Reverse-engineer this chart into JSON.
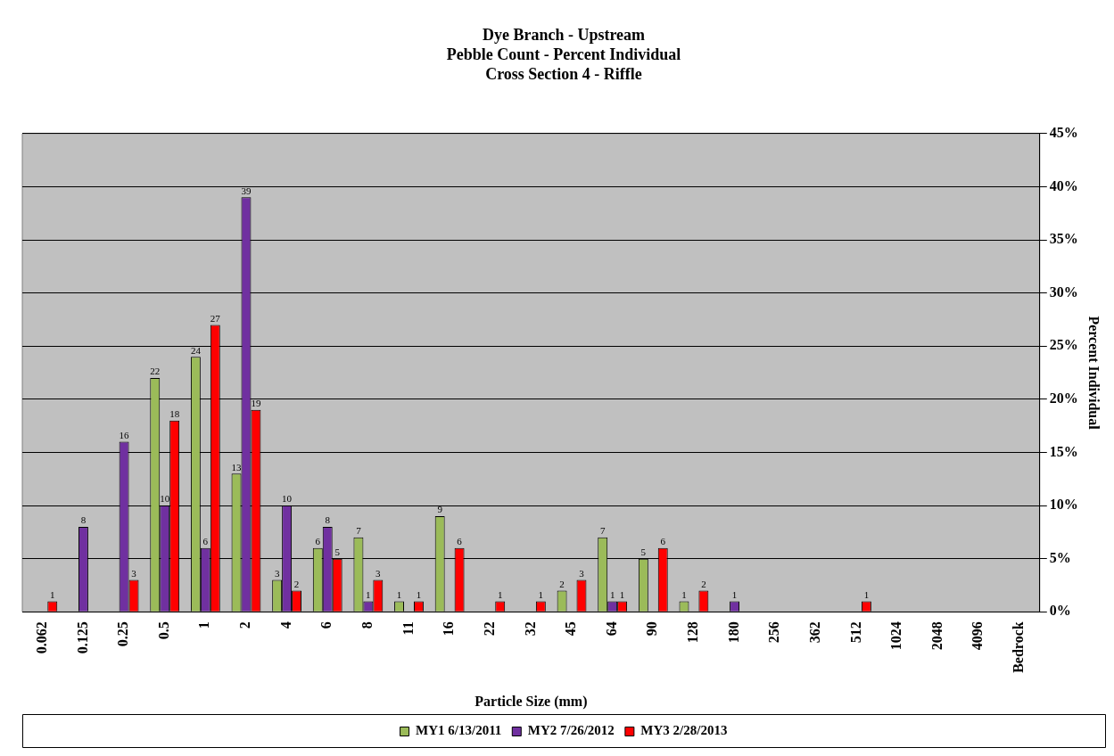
{
  "chart_data": {
    "type": "bar",
    "title": "Dye Branch - Upstream\nPebble Count - Percent Individual\nCross Section 4 - Riffle",
    "xlabel": "Particle Size (mm)",
    "ylabel": "Percent Individual",
    "categories": [
      "0.062",
      "0.125",
      "0.25",
      "0.5",
      "1",
      "2",
      "4",
      "6",
      "8",
      "11",
      "16",
      "22",
      "32",
      "45",
      "64",
      "90",
      "128",
      "180",
      "256",
      "362",
      "512",
      "1024",
      "2048",
      "4096",
      "Bedrock"
    ],
    "series": [
      {
        "name": "MY1 6/13/2011",
        "color": "#9bbb59",
        "values": [
          0,
          0,
          0,
          22,
          24,
          13,
          3,
          6,
          7,
          1,
          9,
          0,
          0,
          2,
          7,
          5,
          1,
          0,
          0,
          0,
          0,
          0,
          0,
          0,
          0
        ],
        "value_labels": [
          null,
          null,
          null,
          "22",
          "24",
          "13",
          "3",
          "6",
          "7",
          "1",
          "9",
          null,
          null,
          "2",
          "7",
          "5",
          "1",
          null,
          null,
          null,
          null,
          null,
          null,
          null,
          null
        ]
      },
      {
        "name": "MY2 7/26/2012",
        "color": "#7030a0",
        "values": [
          0,
          8,
          16,
          10,
          6,
          39,
          10,
          8,
          1,
          0,
          0,
          0,
          0,
          0,
          1,
          0,
          0,
          1,
          0,
          0,
          0,
          0,
          0,
          0,
          0
        ],
        "value_labels": [
          null,
          "8",
          "16",
          "10",
          "6",
          "39",
          "10",
          "8",
          "1",
          null,
          null,
          null,
          null,
          null,
          "1",
          null,
          null,
          "1",
          null,
          null,
          null,
          null,
          null,
          null,
          null
        ]
      },
      {
        "name": "MY3 2/28/2013",
        "color": "#ff0000",
        "values": [
          1,
          0,
          3,
          18,
          27,
          19,
          2,
          5,
          3,
          1,
          6,
          1,
          1,
          3,
          1,
          6,
          2,
          0,
          0,
          0,
          1,
          0,
          0,
          0,
          0
        ],
        "value_labels": [
          "1",
          null,
          "3",
          "18",
          "27",
          "19",
          "2",
          "5",
          "3",
          "1",
          "6",
          "1",
          "1",
          "3",
          "1",
          "6",
          "2",
          null,
          null,
          null,
          "1",
          null,
          null,
          null,
          null
        ]
      }
    ],
    "ylim": [
      0,
      45
    ],
    "yticks": [
      {
        "value": 0,
        "label": "0%"
      },
      {
        "value": 5,
        "label": "5%"
      },
      {
        "value": 10,
        "label": "10%"
      },
      {
        "value": 15,
        "label": "15%"
      },
      {
        "value": 20,
        "label": "20%"
      },
      {
        "value": 25,
        "label": "25%"
      },
      {
        "value": 30,
        "label": "30%"
      },
      {
        "value": 35,
        "label": "35%"
      },
      {
        "value": 40,
        "label": "40%"
      },
      {
        "value": 45,
        "label": "45%"
      }
    ],
    "grid": "y",
    "legend": "bottom"
  }
}
